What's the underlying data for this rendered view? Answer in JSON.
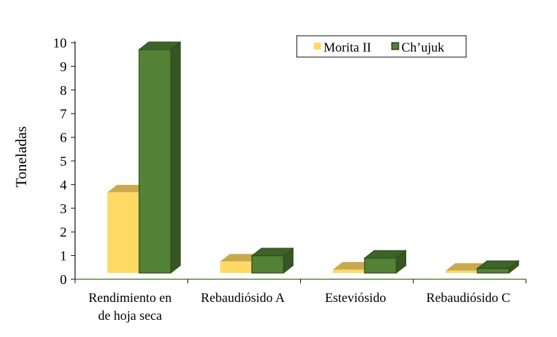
{
  "chart_data": {
    "type": "bar",
    "title": "",
    "xlabel": "",
    "ylabel": "Toneladas",
    "ylim": [
      0,
      10
    ],
    "yticks": [
      0,
      1,
      2,
      3,
      4,
      5,
      6,
      7,
      8,
      9,
      10
    ],
    "categories": [
      [
        "Rendimiento en",
        "de hoja seca"
      ],
      [
        "Rebaudiósido A"
      ],
      [
        "Esteviósido"
      ],
      [
        "Rebaudiósido C"
      ]
    ],
    "series": [
      {
        "name": "Morita II",
        "values": [
          3.5,
          0.5,
          0.15,
          0.1
        ],
        "color": "#FFD966",
        "top_color": "#C9A94E",
        "side_color": "#D9B855",
        "edge_color": "#FFD966"
      },
      {
        "name": "Ch’ujuk",
        "values": [
          9.7,
          0.75,
          0.65,
          0.2
        ],
        "color": "#538135",
        "top_color": "#3E6328",
        "side_color": "#375623",
        "edge_color": "#2E4A1D"
      }
    ],
    "legend_position": "top-right",
    "grid": false,
    "style": "3d-column"
  }
}
